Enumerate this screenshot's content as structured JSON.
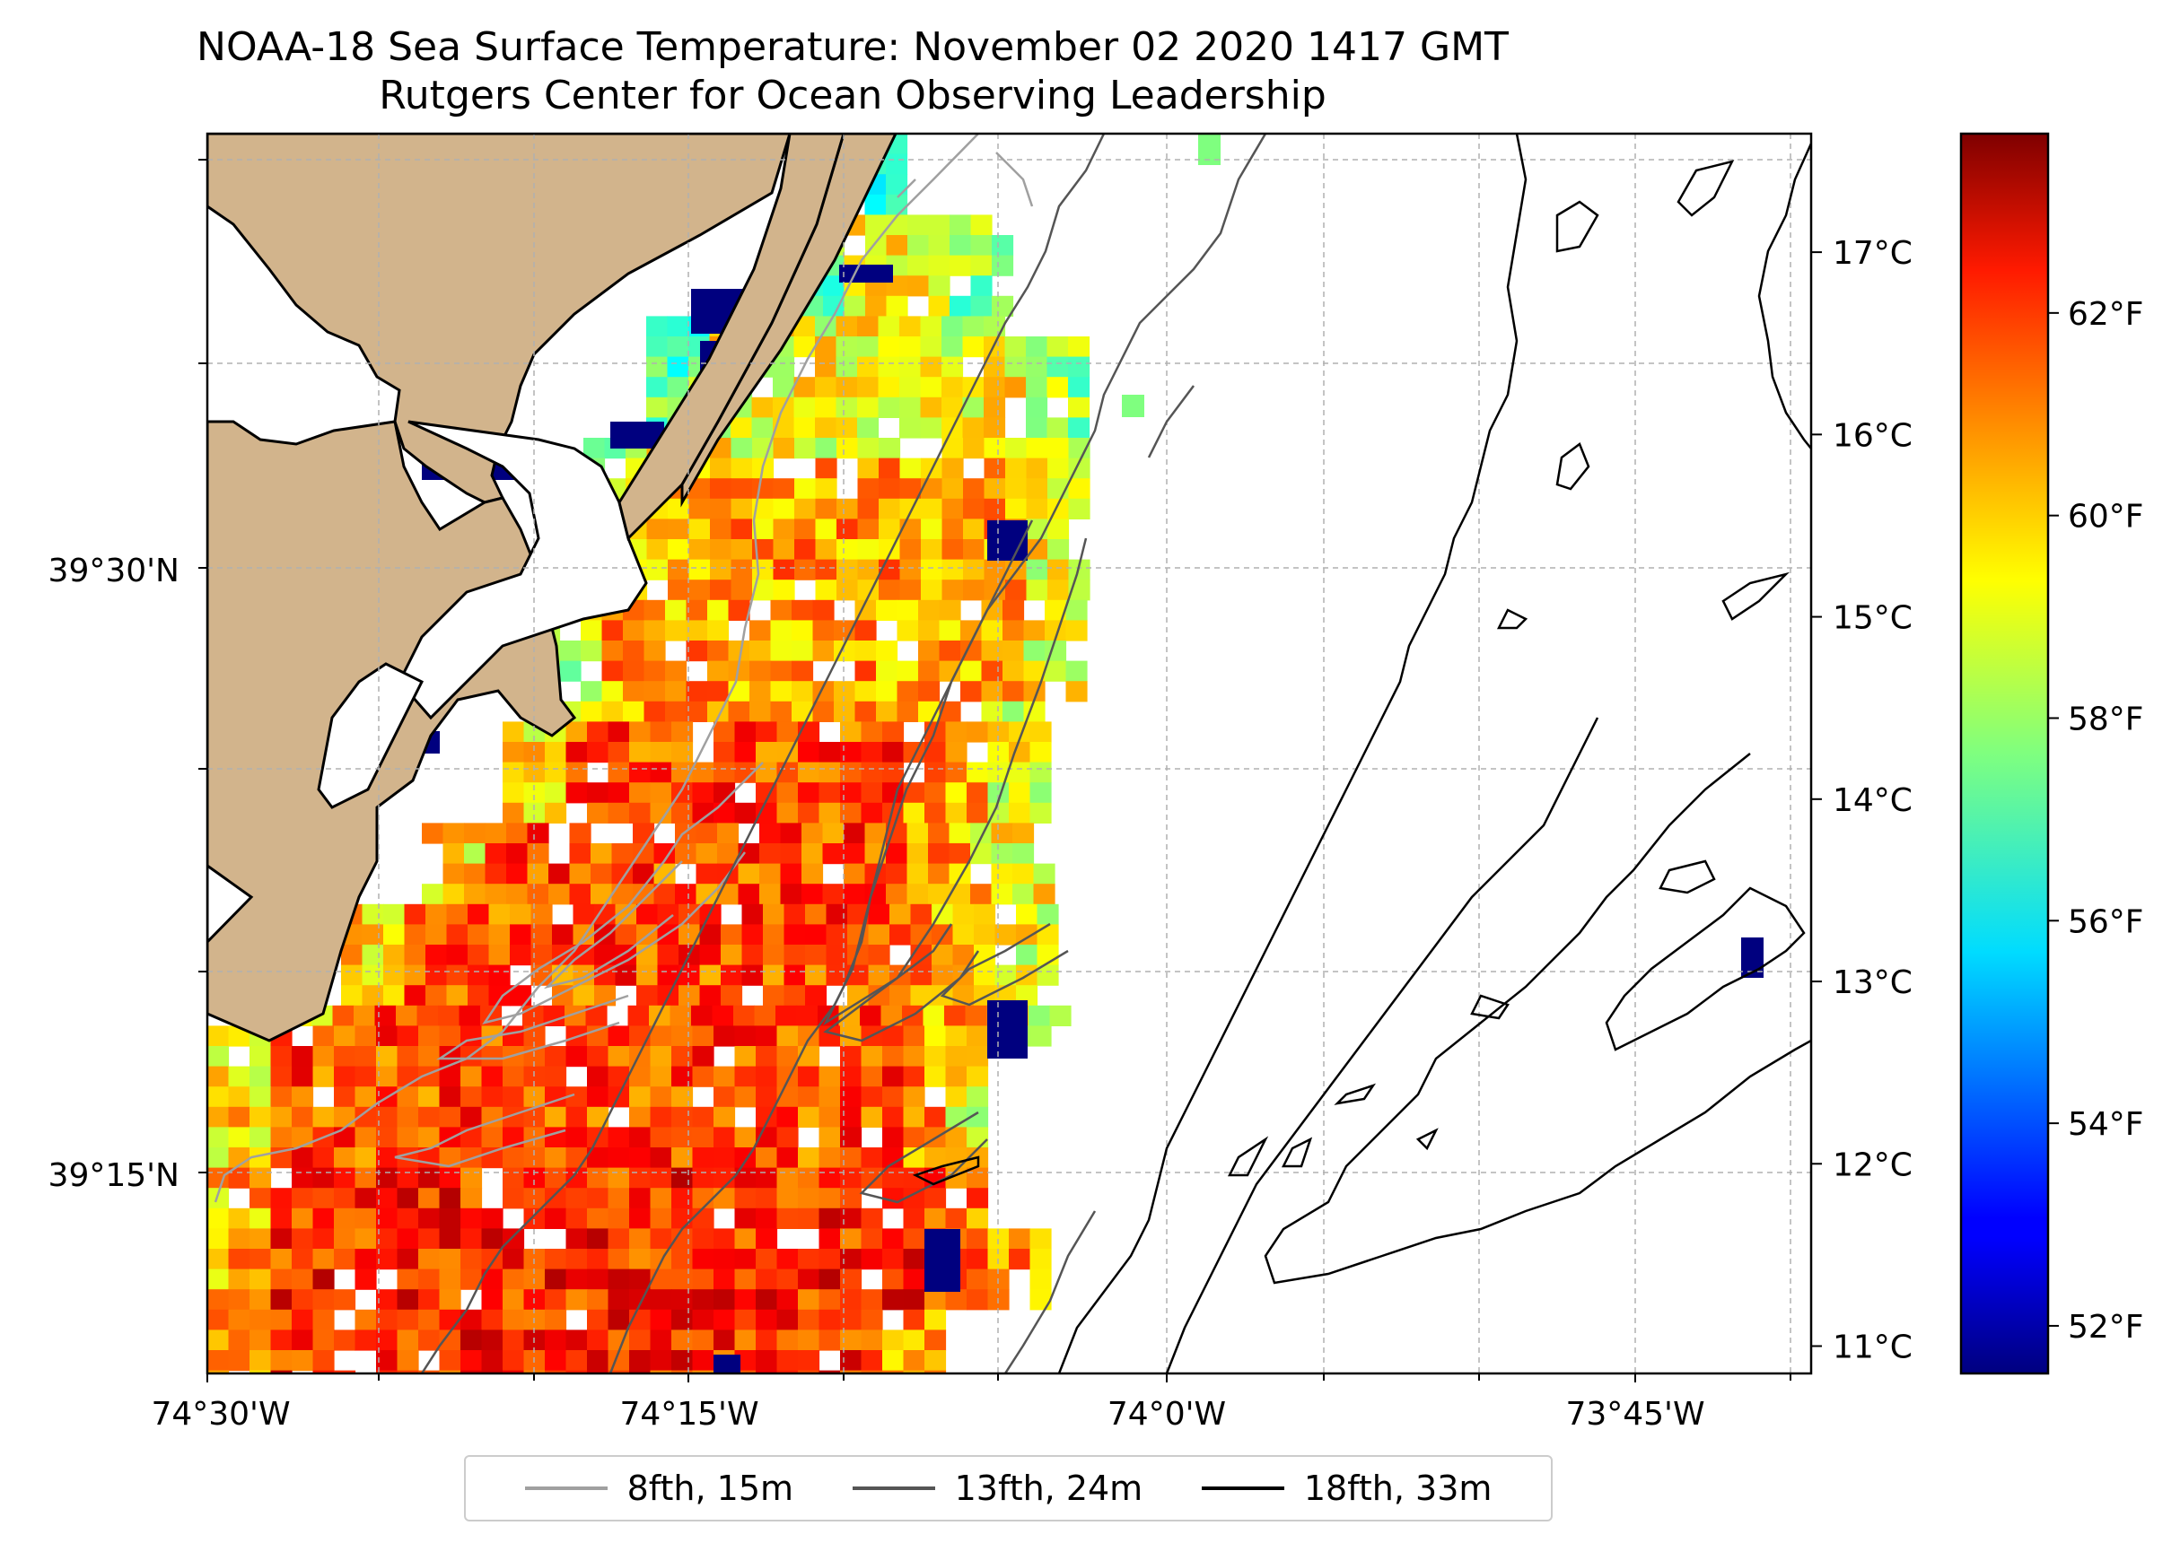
{
  "title": "NOAA-18 Sea Surface Temperature: November 02 2020 1417 GMT",
  "subtitle": "Rutgers Center for Ocean Observing Leadership",
  "map": {
    "x_ticks": [
      "74°30'W",
      "74°15'W",
      "74°0'W",
      "73°45'W"
    ],
    "y_ticks": [
      "39°30'N",
      "39°15'N"
    ],
    "land_color": "#d2b48c",
    "grid": true
  },
  "colorbar": {
    "colormap": "jet",
    "range_c": [
      10.85,
      17.65
    ],
    "celsius_ticks": [
      "11°C",
      "12°C",
      "13°C",
      "14°C",
      "15°C",
      "16°C",
      "17°C"
    ],
    "fahrenheit_ticks": [
      "52°F",
      "54°F",
      "56°F",
      "58°F",
      "60°F",
      "62°F"
    ]
  },
  "legend": {
    "placement": "bottom-center",
    "items": [
      {
        "label": "8fth, 15m",
        "color": "#a0a0a0"
      },
      {
        "label": "13fth, 24m",
        "color": "#555555"
      },
      {
        "label": "18fth, 33m",
        "color": "#000000"
      }
    ]
  }
}
